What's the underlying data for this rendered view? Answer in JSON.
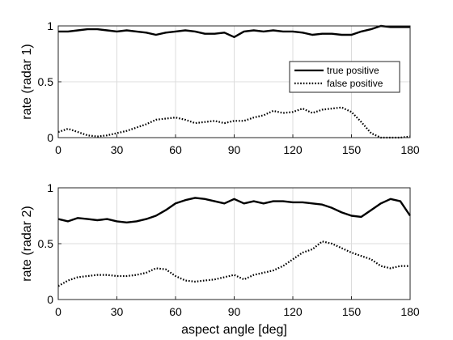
{
  "chart_data": [
    {
      "type": "line",
      "ylabel": "rate (radar 1)",
      "xlabel": "",
      "xlim": [
        0,
        180
      ],
      "ylim": [
        0,
        1
      ],
      "xticks": [
        "0",
        "30",
        "60",
        "90",
        "120",
        "150",
        "180"
      ],
      "yticks": [
        "0",
        "0.5",
        "1"
      ],
      "grid": true,
      "legend": "right",
      "x": [
        0,
        5,
        10,
        15,
        20,
        25,
        30,
        35,
        40,
        45,
        50,
        55,
        60,
        65,
        70,
        75,
        80,
        85,
        90,
        95,
        100,
        105,
        110,
        115,
        120,
        125,
        130,
        135,
        140,
        145,
        150,
        155,
        160,
        165,
        170,
        175,
        180
      ],
      "series": [
        {
          "name": "true positive",
          "style": "solid",
          "values": [
            0.95,
            0.95,
            0.96,
            0.97,
            0.97,
            0.96,
            0.95,
            0.96,
            0.95,
            0.94,
            0.92,
            0.94,
            0.95,
            0.96,
            0.95,
            0.93,
            0.93,
            0.94,
            0.9,
            0.95,
            0.96,
            0.95,
            0.96,
            0.95,
            0.95,
            0.94,
            0.92,
            0.93,
            0.93,
            0.92,
            0.92,
            0.95,
            0.97,
            1.0,
            0.99,
            0.99,
            0.99
          ]
        },
        {
          "name": "false positive",
          "style": "dotted",
          "values": [
            0.05,
            0.08,
            0.05,
            0.02,
            0.01,
            0.02,
            0.04,
            0.06,
            0.09,
            0.12,
            0.16,
            0.17,
            0.18,
            0.16,
            0.13,
            0.14,
            0.15,
            0.13,
            0.15,
            0.15,
            0.18,
            0.2,
            0.24,
            0.22,
            0.23,
            0.26,
            0.22,
            0.25,
            0.26,
            0.27,
            0.23,
            0.14,
            0.04,
            0.0,
            0.0,
            0.0,
            0.01
          ]
        }
      ]
    },
    {
      "type": "line",
      "ylabel": "rate (radar 2)",
      "xlabel": "aspect angle [deg]",
      "xlim": [
        0,
        180
      ],
      "ylim": [
        0,
        1
      ],
      "xticks": [
        "0",
        "30",
        "60",
        "90",
        "120",
        "150",
        "180"
      ],
      "yticks": [
        "0",
        "0.5",
        "1"
      ],
      "grid": true,
      "x": [
        0,
        5,
        10,
        15,
        20,
        25,
        30,
        35,
        40,
        45,
        50,
        55,
        60,
        65,
        70,
        75,
        80,
        85,
        90,
        95,
        100,
        105,
        110,
        115,
        120,
        125,
        130,
        135,
        140,
        145,
        150,
        155,
        160,
        165,
        170,
        175,
        180
      ],
      "series": [
        {
          "name": "true positive",
          "style": "solid",
          "values": [
            0.72,
            0.7,
            0.73,
            0.72,
            0.71,
            0.72,
            0.7,
            0.69,
            0.7,
            0.72,
            0.75,
            0.8,
            0.86,
            0.89,
            0.91,
            0.9,
            0.88,
            0.86,
            0.9,
            0.86,
            0.88,
            0.86,
            0.88,
            0.88,
            0.87,
            0.87,
            0.86,
            0.85,
            0.82,
            0.78,
            0.75,
            0.74,
            0.8,
            0.86,
            0.9,
            0.88,
            0.75
          ]
        },
        {
          "name": "false positive",
          "style": "dotted",
          "values": [
            0.12,
            0.17,
            0.2,
            0.21,
            0.22,
            0.22,
            0.21,
            0.21,
            0.22,
            0.24,
            0.28,
            0.27,
            0.21,
            0.17,
            0.16,
            0.17,
            0.18,
            0.2,
            0.22,
            0.18,
            0.22,
            0.24,
            0.26,
            0.3,
            0.36,
            0.42,
            0.45,
            0.52,
            0.5,
            0.46,
            0.42,
            0.39,
            0.36,
            0.3,
            0.28,
            0.3,
            0.3
          ]
        }
      ]
    }
  ]
}
